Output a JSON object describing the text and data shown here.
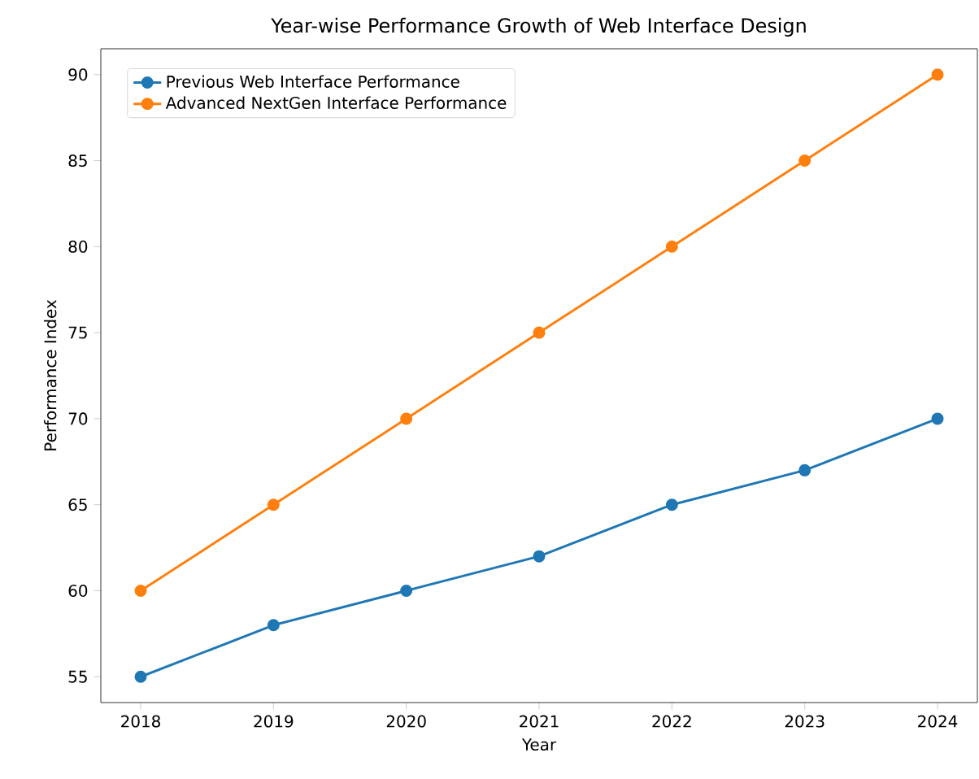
{
  "chart_data": {
    "type": "line",
    "title": "Year-wise Performance Growth of Web Interface Design",
    "xlabel": "Year",
    "ylabel": "Performance Index",
    "x": [
      2018,
      2019,
      2020,
      2021,
      2022,
      2023,
      2024
    ],
    "series": [
      {
        "name": "Previous Web Interface Performance",
        "color": "#1f77b4",
        "values": [
          55,
          58,
          60,
          62,
          65,
          67,
          70
        ]
      },
      {
        "name": "Advanced NextGen Interface Performance",
        "color": "#ff7f0e",
        "values": [
          60,
          65,
          70,
          75,
          80,
          85,
          90
        ]
      }
    ],
    "xlim": [
      2017.7,
      2024.3
    ],
    "ylim": [
      53.5,
      91.5
    ],
    "xticks": [
      2018,
      2019,
      2020,
      2021,
      2022,
      2023,
      2024
    ],
    "yticks": [
      55,
      60,
      65,
      70,
      75,
      80,
      85,
      90
    ],
    "legend": "top left",
    "marker": "circle",
    "line_style": "solid",
    "grid": false
  }
}
